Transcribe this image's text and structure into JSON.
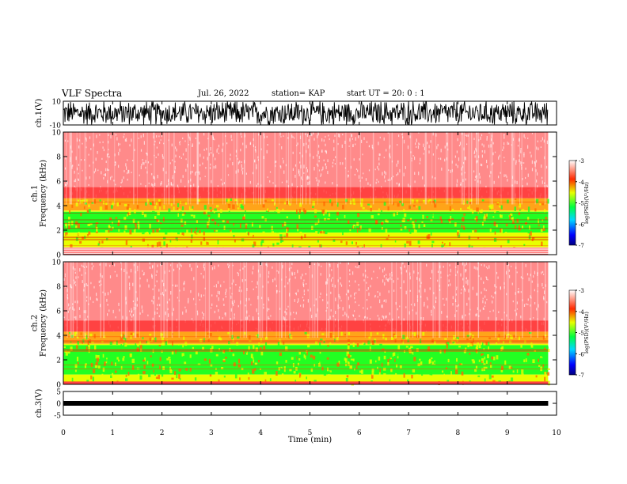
{
  "header": {
    "title": "VLF Spectra",
    "date": "Jul. 26, 2022",
    "station": "station= KAP",
    "start_ut": "start UT =   20: 0  : 1"
  },
  "chart_data": [
    {
      "type": "line",
      "panel": "ch1-waveform",
      "ylabel": "ch.1(V)",
      "ylim": [
        -10,
        10
      ],
      "yticks": [
        "10",
        "-10"
      ],
      "xlim": [
        0,
        10
      ],
      "note_color": "#000000"
    },
    {
      "type": "heatmap",
      "panel": "ch1-spectrogram",
      "ylabel": "ch.1\nFrequency (kHz)",
      "ylim": [
        0,
        10
      ],
      "yticks": [
        "0",
        "2",
        "4",
        "6",
        "8",
        "10"
      ],
      "xlim": [
        0,
        10
      ],
      "data_end_min": 9.83,
      "colorbar": {
        "label": "log(PSD)(V²/Hz)",
        "range": [
          -7,
          -3
        ],
        "ticks": [
          "-3",
          "-4",
          "-5",
          "-6",
          "-7"
        ]
      },
      "profile": {
        "red_to_yellow_khz": 4.6,
        "yellow_to_green_khz": 3.6,
        "green_band_khz": [
          1.8,
          3.5
        ],
        "low_white_khz": 0.6
      }
    },
    {
      "type": "heatmap",
      "panel": "ch2-spectrogram",
      "ylabel": "ch.2\nFrequency (kHz)",
      "ylim": [
        0,
        10
      ],
      "yticks": [
        "0",
        "2",
        "4",
        "6",
        "8",
        "10"
      ],
      "xlim": [
        0,
        10
      ],
      "data_end_min": 9.83,
      "colorbar": {
        "label": "log(PSD)(V²/Hz)",
        "range": [
          -7,
          -3
        ],
        "ticks": [
          "-3",
          "-4",
          "-5",
          "-6",
          "-7"
        ]
      },
      "profile": {
        "red_to_yellow_khz": 4.3,
        "yellow_to_green_khz": 3.3,
        "green_band_khz": [
          0.8,
          3.2
        ],
        "low_white_khz": 0.2
      }
    },
    {
      "type": "line",
      "panel": "ch3-waveform",
      "ylabel": "ch.3(V)",
      "ylim": [
        -5,
        5
      ],
      "yticks": [
        "5",
        "0",
        "-5"
      ],
      "xlim": [
        0,
        10
      ],
      "level_v": 0
    }
  ],
  "xaxis": {
    "label": "Time (min)",
    "ticks": [
      "0",
      "1",
      "2",
      "3",
      "4",
      "5",
      "6",
      "7",
      "8",
      "9",
      "10"
    ]
  },
  "colors": {
    "red": "#ff2a2a",
    "yellow": "#e8ff00",
    "green": "#22ff22",
    "white": "#ffffff"
  }
}
